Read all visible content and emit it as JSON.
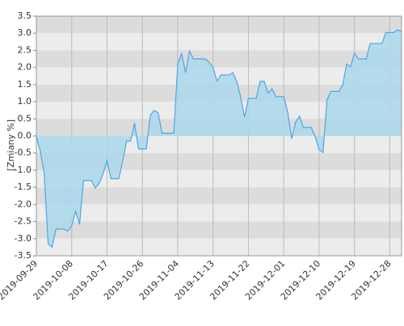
{
  "chart_data": {
    "type": "area",
    "y_label": "[Zmiany %]",
    "line_color": "#4ea6e6",
    "fill_color": "#a9d8ec",
    "band_colors": [
      "#dcdcdc",
      "#ececec"
    ],
    "grid": true,
    "xlim": [
      "2019-09-29",
      "2019-12-31"
    ],
    "xticks": [
      "2019-09-29",
      "2019-10-08",
      "2019-10-17",
      "2019-10-26",
      "2019-11-04",
      "2019-11-13",
      "2019-11-22",
      "2019-12-01",
      "2019-12-10",
      "2019-12-19",
      "2019-12-28"
    ],
    "ylim": [
      -3.5,
      3.5
    ],
    "yticks": [
      {
        "value": 3.5,
        "label": "3.5"
      },
      {
        "value": 3,
        "label": "3.0"
      },
      2.5,
      {
        "value": 2,
        "label": "2.0"
      },
      1.5,
      {
        "value": 1,
        "label": "1.0"
      },
      0.5,
      {
        "value": 0,
        "label": "0.0"
      },
      -0.5,
      {
        "value": -1,
        "label": "-1.0"
      },
      -1.5,
      {
        "value": -2,
        "label": "-2.0"
      },
      -2.5,
      {
        "value": -3,
        "label": "-3.0"
      },
      -3.5
    ],
    "x": [
      "2019-09-29",
      "2019-09-30",
      "2019-10-01",
      "2019-10-02",
      "2019-10-03",
      "2019-10-04",
      "2019-10-06",
      "2019-10-07",
      "2019-10-08",
      "2019-10-09",
      "2019-10-10",
      "2019-10-11",
      "2019-10-13",
      "2019-10-14",
      "2019-10-15",
      "2019-10-16",
      "2019-10-17",
      "2019-10-18",
      "2019-10-20",
      "2019-10-21",
      "2019-10-22",
      "2019-10-23",
      "2019-10-24",
      "2019-10-25",
      "2019-10-27",
      "2019-10-28",
      "2019-10-29",
      "2019-10-30",
      "2019-10-31",
      "2019-11-03",
      "2019-11-04",
      "2019-11-05",
      "2019-11-06",
      "2019-11-07",
      "2019-11-08",
      "2019-11-11",
      "2019-11-12",
      "2019-11-13",
      "2019-11-14",
      "2019-11-15",
      "2019-11-17",
      "2019-11-18",
      "2019-11-19",
      "2019-11-20",
      "2019-11-21",
      "2019-11-22",
      "2019-11-24",
      "2019-11-25",
      "2019-11-26",
      "2019-11-27",
      "2019-11-28",
      "2019-11-29",
      "2019-12-01",
      "2019-12-02",
      "2019-12-03",
      "2019-12-04",
      "2019-12-05",
      "2019-12-06",
      "2019-12-08",
      "2019-12-09",
      "2019-12-10",
      "2019-12-11",
      "2019-12-12",
      "2019-12-13",
      "2019-12-15",
      "2019-12-16",
      "2019-12-17",
      "2019-12-18",
      "2019-12-19",
      "2019-12-20",
      "2019-12-22",
      "2019-12-23",
      "2019-12-26",
      "2019-12-27",
      "2019-12-29",
      "2019-12-30",
      "2019-12-31"
    ],
    "values": [
      0,
      -0.45,
      -1.1,
      -3.15,
      -3.25,
      -2.72,
      -2.72,
      -2.78,
      -2.62,
      -2.2,
      -2.58,
      -1.3,
      -1.3,
      -1.52,
      -1.38,
      -1.1,
      -0.72,
      -1.25,
      -1.25,
      -0.72,
      -0.15,
      -0.15,
      0.38,
      -0.38,
      -0.38,
      0.6,
      0.75,
      0.68,
      0.08,
      0.08,
      2.1,
      2.4,
      1.85,
      2.48,
      2.25,
      2.25,
      2.15,
      2.0,
      1.6,
      1.78,
      1.78,
      1.85,
      1.6,
      1.15,
      0.55,
      1.1,
      1.1,
      1.6,
      1.6,
      1.25,
      1.38,
      1.15,
      1.15,
      0.7,
      -0.08,
      0.4,
      0.58,
      0.25,
      0.25,
      -0.02,
      -0.4,
      -0.48,
      1.05,
      1.3,
      1.3,
      1.48,
      2.1,
      2.02,
      2.42,
      2.25,
      2.25,
      2.7,
      2.7,
      3.02,
      3.02,
      3.1,
      3.05
    ]
  }
}
